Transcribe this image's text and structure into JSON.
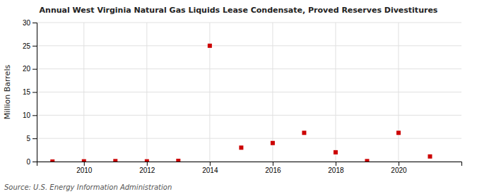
{
  "chart_data": {
    "type": "scatter",
    "title": "Annual West Virginia Natural Gas Liquids Lease Condensate, Proved Reserves Divestitures",
    "ylabel": "Million Barrels",
    "source": "Source: U.S. Energy Information Administration",
    "x": [
      2009,
      2010,
      2011,
      2012,
      2013,
      2014,
      2015,
      2016,
      2017,
      2018,
      2019,
      2020,
      2021
    ],
    "values": [
      0.0,
      0.05,
      0.1,
      0.05,
      0.15,
      25.0,
      3.0,
      4.0,
      6.2,
      2.0,
      0.1,
      6.2,
      1.1
    ],
    "color": "#cc0000",
    "marker": "square",
    "xlim": [
      2008.5,
      2022.0
    ],
    "xticks": [
      2010,
      2012,
      2014,
      2016,
      2018,
      2020
    ],
    "ylim": [
      0,
      30
    ],
    "yticks": [
      0,
      5,
      10,
      15,
      20,
      25,
      30
    ],
    "grid": true
  }
}
